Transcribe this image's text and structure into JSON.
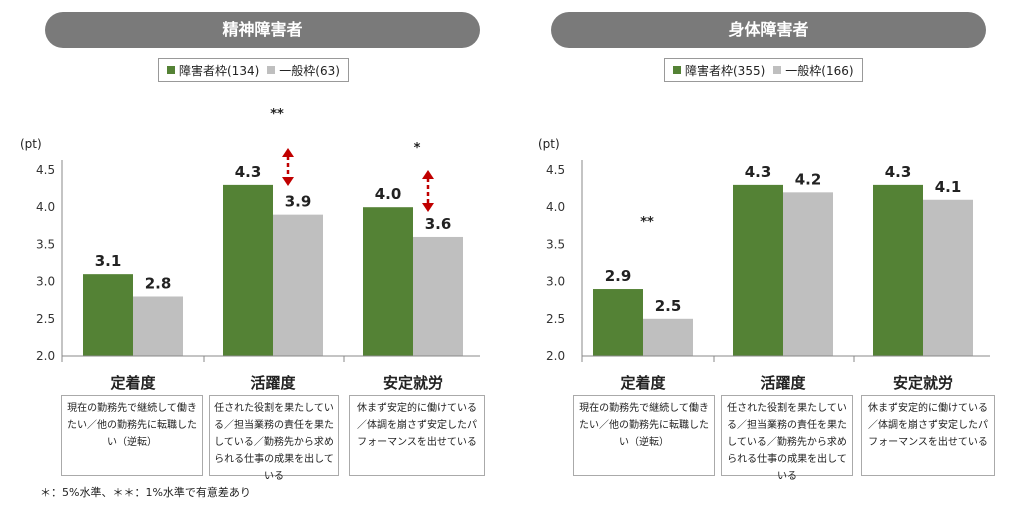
{
  "chart_data": [
    {
      "type": "bar",
      "title": "精神障害者",
      "unit": "(pt)",
      "categories": [
        "定着度",
        "活躍度",
        "安定就労"
      ],
      "descriptions": [
        "現在の勤務先で継続して働きたい／他の勤務先に転職したい（逆転）",
        "任された役割を果たしている／担当業務の責任を果たしている／勤務先から求められる仕事の成果を出している",
        "休まず安定的に働けている／体調を崩さず安定したパフォーマンスを出せている"
      ],
      "series": [
        {
          "name": "障害者枠(134)",
          "color": "#548235",
          "values": [
            3.1,
            4.3,
            4.0
          ],
          "labels": [
            "3.1",
            "4.3",
            "4.0"
          ]
        },
        {
          "name": "一般枠(63)",
          "color": "#bfbfbf",
          "values": [
            2.8,
            3.9,
            3.6
          ],
          "labels": [
            "2.8",
            "3.9",
            "3.6"
          ]
        }
      ],
      "significance": [
        "",
        "**",
        "*"
      ],
      "ylim": [
        2.0,
        4.5
      ],
      "yticks": [
        "2.0",
        "2.5",
        "3.0",
        "3.5",
        "4.0",
        "4.5"
      ],
      "grid": false
    },
    {
      "type": "bar",
      "title": "身体障害者",
      "unit": "(pt)",
      "categories": [
        "定着度",
        "活躍度",
        "安定就労"
      ],
      "descriptions": [
        "現在の勤務先で継続して働きたい／他の勤務先に転職したい（逆転）",
        "任された役割を果たしている／担当業務の責任を果たしている／勤務先から求められる仕事の成果を出している",
        "休まず安定的に働けている／体調を崩さず安定したパフォーマンスを出せている"
      ],
      "series": [
        {
          "name": "障害者枠(355)",
          "color": "#548235",
          "values": [
            2.9,
            4.3,
            4.3
          ],
          "labels": [
            "2.9",
            "4.3",
            "4.3"
          ]
        },
        {
          "name": "一般枠(166)",
          "color": "#bfbfbf",
          "values": [
            2.5,
            4.2,
            4.1
          ],
          "labels": [
            "2.5",
            "4.2",
            "4.1"
          ]
        }
      ],
      "significance": [
        "**",
        "",
        ""
      ],
      "ylim": [
        2.0,
        4.5
      ],
      "yticks": [
        "2.0",
        "2.5",
        "3.0",
        "3.5",
        "4.0",
        "4.5"
      ],
      "grid": false
    }
  ],
  "footnote": "＊：5%水準、＊＊：1%水準で有意差あり"
}
